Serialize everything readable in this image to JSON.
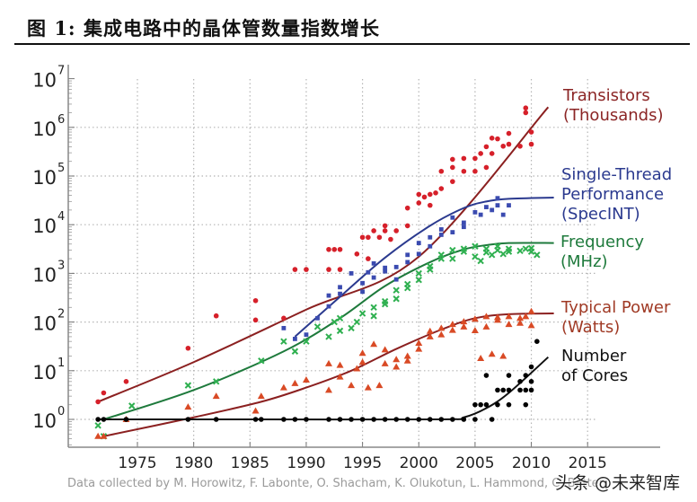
{
  "figure": {
    "label": "图",
    "number": "1:",
    "caption": "集成电路中的晶体管数量指数增长"
  },
  "credit": "Data collected by M. Horowitz, F. Labonte, O. Shacham, K. Olukotun, L. Hammond, C. Batten",
  "watermark": "头条 @未来智库",
  "chart_data": {
    "type": "scatter",
    "title": "",
    "xlabel": "",
    "ylabel": "",
    "yscale": "log",
    "xlim": [
      1970,
      2017
    ],
    "ylim_exponent": [
      -0.6,
      7
    ],
    "grid": true,
    "x_ticks": [
      1975,
      1980,
      1985,
      1990,
      1995,
      2000,
      2005,
      2010,
      2015
    ],
    "y_ticks": [
      {
        "base": "10",
        "exp": "0"
      },
      {
        "base": "10",
        "exp": "1"
      },
      {
        "base": "10",
        "exp": "2"
      },
      {
        "base": "10",
        "exp": "3"
      },
      {
        "base": "10",
        "exp": "4"
      },
      {
        "base": "10",
        "exp": "5"
      },
      {
        "base": "10",
        "exp": "6"
      },
      {
        "base": "10",
        "exp": "7"
      }
    ],
    "legend_placement": "right, inline labels",
    "series": [
      {
        "name": "Transistors (Thousands)",
        "label_lines": [
          "Transistors",
          "(Thousands)"
        ],
        "color": "#8b2020",
        "marker_color": "#d6202a",
        "marker": "circle",
        "trend": [
          [
            1971.5,
            2.3
          ],
          [
            1980,
            15
          ],
          [
            1990,
            180
          ],
          [
            2000,
            2200
          ],
          [
            2011.5,
            2600000
          ]
        ],
        "points": [
          [
            1971.5,
            2.3
          ],
          [
            1972,
            3.5
          ],
          [
            1974,
            6
          ],
          [
            1979.5,
            29
          ],
          [
            1982,
            134
          ],
          [
            1985.5,
            275
          ],
          [
            1985.5,
            110
          ],
          [
            1988,
            120
          ],
          [
            1989,
            1200
          ],
          [
            1990,
            1200
          ],
          [
            1992,
            3100
          ],
          [
            1992.5,
            3100
          ],
          [
            1992,
            1200
          ],
          [
            1993,
            3100
          ],
          [
            1993,
            1200
          ],
          [
            1994.5,
            2500
          ],
          [
            1995,
            5500
          ],
          [
            1995.5,
            5500
          ],
          [
            1995.5,
            2000
          ],
          [
            1996,
            7500
          ],
          [
            1996.5,
            5500
          ],
          [
            1997,
            7500
          ],
          [
            1997,
            9500
          ],
          [
            1997.5,
            5000
          ],
          [
            1998,
            7500
          ],
          [
            1999,
            9500
          ],
          [
            1999,
            22000
          ],
          [
            2000,
            28000
          ],
          [
            2000,
            42000
          ],
          [
            2000.5,
            37000
          ],
          [
            2001,
            42000
          ],
          [
            2001,
            25000
          ],
          [
            2001.5,
            45000
          ],
          [
            2002,
            55000
          ],
          [
            2002,
            125000
          ],
          [
            2003,
            220000
          ],
          [
            2003,
            77000
          ],
          [
            2003,
            150000
          ],
          [
            2004,
            125000
          ],
          [
            2004,
            230000
          ],
          [
            2005,
            125000
          ],
          [
            2005,
            230000
          ],
          [
            2005.5,
            290000
          ],
          [
            2006,
            150000
          ],
          [
            2006,
            400000
          ],
          [
            2006.5,
            600000
          ],
          [
            2006.5,
            290000
          ],
          [
            2007,
            580000
          ],
          [
            2007.5,
            410000
          ],
          [
            2008,
            750000
          ],
          [
            2008,
            450000
          ],
          [
            2009,
            410000
          ],
          [
            2009.5,
            2000000
          ],
          [
            2009.5,
            2500000
          ],
          [
            2010,
            450000
          ],
          [
            2010,
            800000
          ]
        ]
      },
      {
        "name": "Single-Thread Performance (SpecINT)",
        "label_lines": [
          "Single-Thread",
          "Performance",
          "(SpecINT)"
        ],
        "color": "#2b3a8f",
        "marker_color": "#3b4bb0",
        "marker": "square",
        "trend": [
          [
            1989,
            50
          ],
          [
            1993,
            330
          ],
          [
            1997,
            2100
          ],
          [
            2001,
            9500
          ],
          [
            2004,
            22000
          ],
          [
            2006,
            30000
          ],
          [
            2008,
            34000
          ],
          [
            2012,
            36000
          ]
        ],
        "points": [
          [
            1988,
            75
          ],
          [
            1989,
            45
          ],
          [
            1990,
            55
          ],
          [
            1991,
            120
          ],
          [
            1992,
            210
          ],
          [
            1992,
            350
          ],
          [
            1993,
            380
          ],
          [
            1993,
            520
          ],
          [
            1994,
            1000
          ],
          [
            1995,
            420
          ],
          [
            1995,
            630
          ],
          [
            1995.5,
            1050
          ],
          [
            1996,
            820
          ],
          [
            1996,
            1600
          ],
          [
            1997,
            1100
          ],
          [
            1997,
            1300
          ],
          [
            1998,
            750
          ],
          [
            1998,
            1350
          ],
          [
            1999,
            2400
          ],
          [
            1999,
            1700
          ],
          [
            2000,
            2500
          ],
          [
            2000,
            4200
          ],
          [
            2001,
            3600
          ],
          [
            2001,
            5500
          ],
          [
            2002,
            6200
          ],
          [
            2002,
            8000
          ],
          [
            2003,
            7000
          ],
          [
            2003,
            14000
          ],
          [
            2004,
            9000
          ],
          [
            2004,
            11000
          ],
          [
            2005,
            18000
          ],
          [
            2005.5,
            16000
          ],
          [
            2006,
            23000
          ],
          [
            2006.5,
            20000
          ],
          [
            2007,
            25000
          ],
          [
            2007,
            35000
          ],
          [
            2007.5,
            16000
          ],
          [
            2008,
            25000
          ]
        ]
      },
      {
        "name": "Frequency (MHz)",
        "label_lines": [
          "Frequency",
          "(MHz)"
        ],
        "color": "#1e7a3c",
        "marker_color": "#2fb050",
        "marker": "x",
        "trend": [
          [
            1972,
            1
          ],
          [
            1980,
            4
          ],
          [
            1988,
            25
          ],
          [
            1993,
            120
          ],
          [
            1997,
            550
          ],
          [
            2001,
            1700
          ],
          [
            2004,
            3100
          ],
          [
            2006,
            3800
          ],
          [
            2008,
            4200
          ],
          [
            2012,
            4200
          ]
        ],
        "points": [
          [
            1971.5,
            0.75
          ],
          [
            1972,
            0.45
          ],
          [
            1974.5,
            1.9
          ],
          [
            1979.5,
            5
          ],
          [
            1982,
            6
          ],
          [
            1986,
            16
          ],
          [
            1988,
            40
          ],
          [
            1989,
            25
          ],
          [
            1990,
            40
          ],
          [
            1991,
            80
          ],
          [
            1992,
            50
          ],
          [
            1992.5,
            100
          ],
          [
            1993,
            66
          ],
          [
            1993,
            120
          ],
          [
            1994,
            75
          ],
          [
            1994.5,
            100
          ],
          [
            1995,
            150
          ],
          [
            1996,
            133
          ],
          [
            1996,
            200
          ],
          [
            1997,
            266
          ],
          [
            1997,
            233
          ],
          [
            1998,
            300
          ],
          [
            1998,
            450
          ],
          [
            1999,
            500
          ],
          [
            1999,
            600
          ],
          [
            2000,
            733
          ],
          [
            2000,
            1000
          ],
          [
            2001,
            1400
          ],
          [
            2001,
            1200
          ],
          [
            2002,
            2000
          ],
          [
            2002,
            2400
          ],
          [
            2003,
            2000
          ],
          [
            2003,
            3000
          ],
          [
            2004,
            3200
          ],
          [
            2004,
            2800
          ],
          [
            2005,
            3600
          ],
          [
            2005,
            2200
          ],
          [
            2005.5,
            1800
          ],
          [
            2006,
            2700
          ],
          [
            2006,
            3200
          ],
          [
            2006.5,
            2400
          ],
          [
            2007,
            3000
          ],
          [
            2007,
            3600
          ],
          [
            2007.5,
            2500
          ],
          [
            2008,
            2800
          ],
          [
            2008,
            3200
          ],
          [
            2009,
            2900
          ],
          [
            2009.5,
            3200
          ],
          [
            2010,
            2800
          ],
          [
            2010,
            3300
          ],
          [
            2010.5,
            2400
          ]
        ]
      },
      {
        "name": "Typical Power (Watts)",
        "label_lines": [
          "Typical Power",
          "(Watts)"
        ],
        "color": "#8b2020",
        "marker_color": "#d94a25",
        "marker": "triangle",
        "trend": [
          [
            1972,
            0.45
          ],
          [
            1980,
            1.1
          ],
          [
            1986,
            2.3
          ],
          [
            1990,
            4.5
          ],
          [
            1994,
            10
          ],
          [
            1998,
            28
          ],
          [
            2002,
            70
          ],
          [
            2005,
            120
          ],
          [
            2008,
            145
          ],
          [
            2012,
            150
          ]
        ],
        "points": [
          [
            1971.5,
            0.45
          ],
          [
            1972,
            0.45
          ],
          [
            1974,
            1
          ],
          [
            1979.5,
            1.8
          ],
          [
            1982,
            3
          ],
          [
            1985.5,
            1.5
          ],
          [
            1986,
            3
          ],
          [
            1988,
            4.5
          ],
          [
            1989,
            5.5
          ],
          [
            1990,
            6.5
          ],
          [
            1992,
            14
          ],
          [
            1992,
            4
          ],
          [
            1993,
            7.5
          ],
          [
            1993,
            13
          ],
          [
            1994,
            5
          ],
          [
            1994.5,
            11
          ],
          [
            1995,
            23
          ],
          [
            1995,
            15
          ],
          [
            1995.5,
            4.5
          ],
          [
            1996,
            35
          ],
          [
            1996.5,
            5
          ],
          [
            1997,
            27
          ],
          [
            1997,
            14
          ],
          [
            1998,
            12
          ],
          [
            1998,
            17
          ],
          [
            1999,
            20
          ],
          [
            1999,
            16
          ],
          [
            2000,
            37
          ],
          [
            2000,
            28
          ],
          [
            2001,
            50
          ],
          [
            2001,
            65
          ],
          [
            2002,
            75
          ],
          [
            2002,
            55
          ],
          [
            2003,
            68
          ],
          [
            2003,
            90
          ],
          [
            2004,
            102
          ],
          [
            2004,
            80
          ],
          [
            2005,
            115
          ],
          [
            2005,
            67
          ],
          [
            2005.5,
            18
          ],
          [
            2006,
            130
          ],
          [
            2006,
            80
          ],
          [
            2006.5,
            22
          ],
          [
            2007,
            110
          ],
          [
            2007,
            125
          ],
          [
            2007.5,
            20
          ],
          [
            2008,
            90
          ],
          [
            2008,
            130
          ],
          [
            2009,
            95
          ],
          [
            2009,
            120
          ],
          [
            2009.5,
            130
          ],
          [
            2010,
            85
          ],
          [
            2010,
            165
          ]
        ]
      },
      {
        "name": "Number of Cores",
        "label_lines": [
          "Number",
          "of Cores"
        ],
        "color": "#111111",
        "marker_color": "#000000",
        "marker": "circle",
        "trend": [
          [
            1971.5,
            1
          ],
          [
            1985,
            1
          ],
          [
            2002,
            1
          ],
          [
            2004,
            1.1
          ],
          [
            2006,
            1.7
          ],
          [
            2008,
            3.5
          ],
          [
            2011.5,
            19
          ]
        ],
        "points": [
          [
            1971.5,
            1
          ],
          [
            1972,
            1
          ],
          [
            1974,
            1
          ],
          [
            1979.5,
            1
          ],
          [
            1982,
            1
          ],
          [
            1985.5,
            1
          ],
          [
            1986,
            1
          ],
          [
            1988,
            1
          ],
          [
            1989,
            1
          ],
          [
            1990,
            1
          ],
          [
            1992,
            1
          ],
          [
            1993,
            1
          ],
          [
            1994,
            1
          ],
          [
            1995,
            1
          ],
          [
            1996,
            1
          ],
          [
            1997,
            1
          ],
          [
            1998,
            1
          ],
          [
            1999,
            1
          ],
          [
            2000,
            1
          ],
          [
            2001,
            1
          ],
          [
            2002,
            1
          ],
          [
            2003,
            1
          ],
          [
            2004,
            1
          ],
          [
            2005,
            1
          ],
          [
            2005,
            2
          ],
          [
            2005.5,
            2
          ],
          [
            2006,
            2
          ],
          [
            2006,
            8
          ],
          [
            2006.5,
            1
          ],
          [
            2007,
            2
          ],
          [
            2007,
            4
          ],
          [
            2007.5,
            4
          ],
          [
            2008,
            8
          ],
          [
            2008,
            2
          ],
          [
            2008,
            4
          ],
          [
            2009,
            4
          ],
          [
            2009,
            6
          ],
          [
            2009.5,
            8
          ],
          [
            2009.5,
            2
          ],
          [
            2009.5,
            4
          ],
          [
            2010,
            12
          ],
          [
            2010,
            4
          ],
          [
            2010,
            6
          ],
          [
            2010.5,
            40
          ]
        ]
      }
    ]
  }
}
